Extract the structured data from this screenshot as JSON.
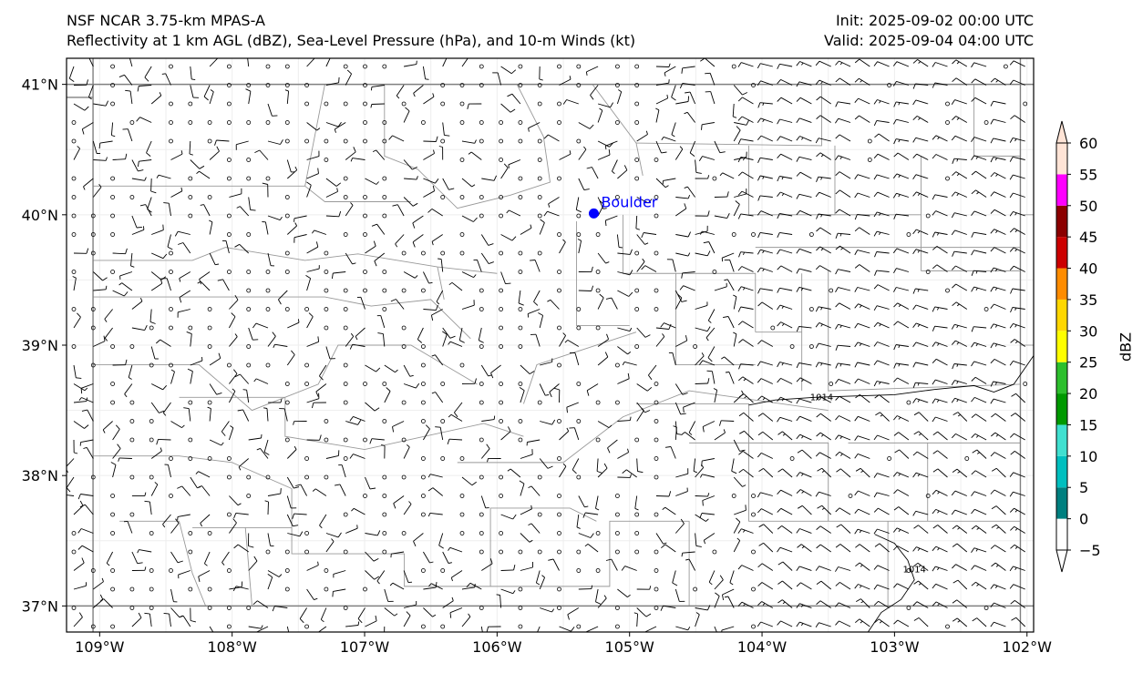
{
  "title": {
    "left_line1": "NSF NCAR 3.75-km MPAS-A",
    "left_line2": "Reflectivity at 1 km AGL (dBZ), Sea-Level Pressure (hPa), and 10-m Winds (kt)",
    "right_line1": "Init: 2025-09-02 00:00 UTC",
    "right_line2": "Valid: 2025-09-04 04:00 UTC"
  },
  "map": {
    "extent": {
      "lon_min": -109.25,
      "lon_max": -101.95,
      "lat_min": 36.8,
      "lat_max": 41.2
    },
    "x_ticks": [
      {
        "lon": -109,
        "label": "109°W"
      },
      {
        "lon": -108,
        "label": "108°W"
      },
      {
        "lon": -107,
        "label": "107°W"
      },
      {
        "lon": -106,
        "label": "106°W"
      },
      {
        "lon": -105,
        "label": "105°W"
      },
      {
        "lon": -104,
        "label": "104°W"
      },
      {
        "lon": -103,
        "label": "103°W"
      },
      {
        "lon": -102,
        "label": "102°W"
      }
    ],
    "y_ticks": [
      {
        "lat": 41,
        "label": "41°N"
      },
      {
        "lat": 40,
        "label": "40°N"
      },
      {
        "lat": 39,
        "label": "39°N"
      },
      {
        "lat": 38,
        "label": "38°N"
      },
      {
        "lat": 37,
        "label": "37°N"
      }
    ],
    "city": {
      "name": "Boulder",
      "lon": -105.27,
      "lat": 40.01,
      "color": "#0000ff"
    },
    "isobars": [
      {
        "label": "1014",
        "label_lon": -103.55,
        "label_lat": 38.6,
        "points": [
          [
            -104.1,
            38.54
          ],
          [
            -103.9,
            38.58
          ],
          [
            -103.6,
            38.6
          ],
          [
            -103.3,
            38.61
          ],
          [
            -103.0,
            38.62
          ],
          [
            -102.7,
            38.66
          ],
          [
            -102.4,
            38.69
          ],
          [
            -102.25,
            38.64
          ],
          [
            -102.1,
            38.7
          ],
          [
            -101.95,
            38.92
          ]
        ]
      },
      {
        "label": "1014",
        "label_lon": -102.85,
        "label_lat": 37.28,
        "points": [
          [
            -103.15,
            37.55
          ],
          [
            -103.0,
            37.48
          ],
          [
            -102.9,
            37.35
          ],
          [
            -102.85,
            37.2
          ],
          [
            -102.95,
            37.05
          ],
          [
            -103.1,
            36.95
          ],
          [
            -103.2,
            36.8
          ]
        ]
      }
    ],
    "border_color": "#808080",
    "county_color": "#999999",
    "wind_color": "#000000"
  },
  "colorbar": {
    "label": "dBZ",
    "levels": [
      -5,
      0,
      5,
      10,
      15,
      20,
      25,
      30,
      35,
      40,
      45,
      50,
      55,
      60
    ],
    "tick_labels": [
      "−5",
      "0",
      "5",
      "10",
      "15",
      "20",
      "25",
      "30",
      "35",
      "40",
      "45",
      "50",
      "55",
      "60"
    ],
    "colors": [
      "#ffffff",
      "#007f7f",
      "#00bfbf",
      "#40e0d0",
      "#009900",
      "#2dbf2d",
      "#ffff00",
      "#ffd700",
      "#ff8c00",
      "#cc0000",
      "#8b0000",
      "#ff00ff",
      "#ffe4d6"
    ],
    "under_color": "#ffffff",
    "over_color": "#ffe4d6"
  }
}
